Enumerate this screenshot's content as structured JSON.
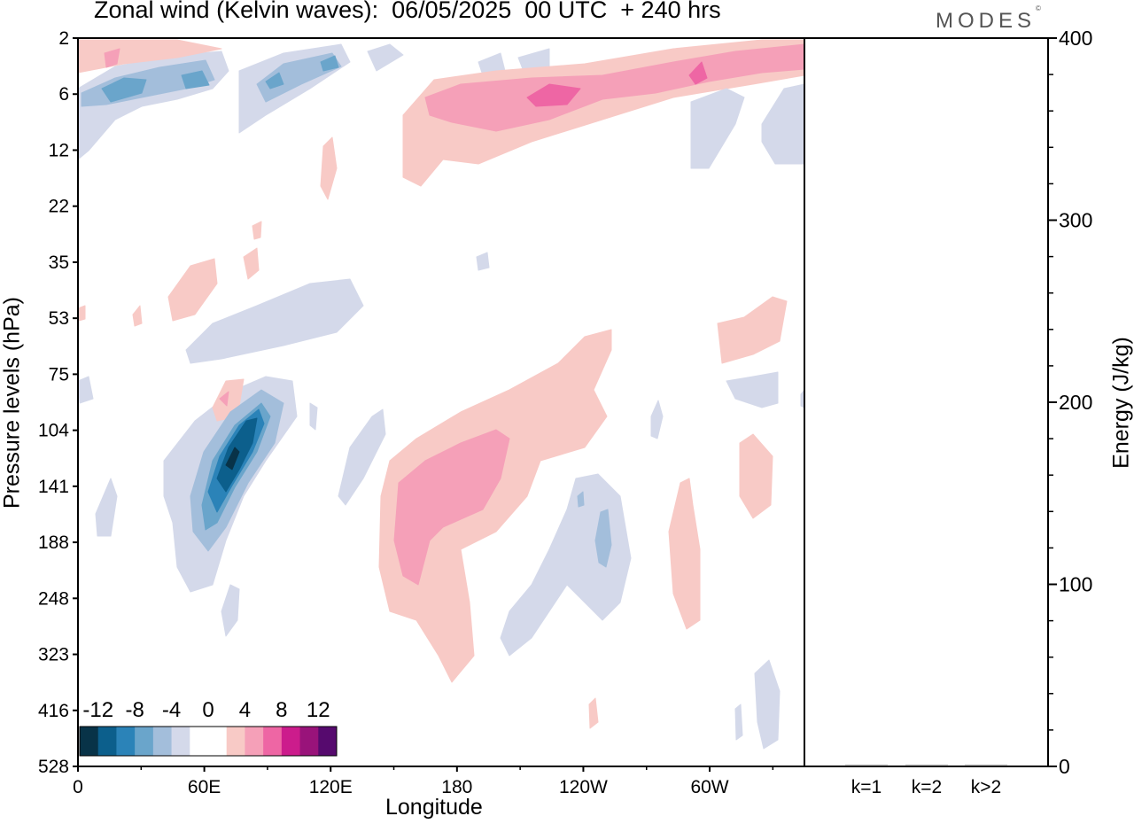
{
  "title": "Zonal wind (Kelvin waves):  06/05/2025  00 UTC  + 240 hrs",
  "brand": "MODES",
  "brand_mark": "©",
  "chart_data": [
    {
      "type": "heatmap",
      "xlabel": "Longitude",
      "ylabel": "Pressure levels (hPa)",
      "x_ticks": [
        "0",
        "60E",
        "120E",
        "180",
        "120W",
        "60W"
      ],
      "x_tick_values": [
        0,
        60,
        120,
        180,
        240,
        300
      ],
      "xlim": [
        0,
        345
      ],
      "y_ticks": [
        "2",
        "6",
        "12",
        "22",
        "35",
        "53",
        "75",
        "104",
        "141",
        "188",
        "248",
        "323",
        "416",
        "528"
      ],
      "y_scale": "pressure levels, top = 2 hPa",
      "colorbar": {
        "labels": [
          "-12",
          "-8",
          "-4",
          "0",
          "4",
          "8",
          "12"
        ],
        "levels": [
          -14,
          -12,
          -10,
          -8,
          -6,
          -4,
          -2,
          0,
          2,
          4,
          6,
          8,
          10,
          12,
          14
        ],
        "colors": [
          "#083348",
          "#0c5f8c",
          "#2b83b8",
          "#6aa5cb",
          "#a3bedb",
          "#d4d9ea",
          "#ffffff",
          "#ffffff",
          "#f8cac6",
          "#f5a0b8",
          "#ee66a4",
          "#cc1c8c",
          "#99137a",
          "#560a6e"
        ]
      },
      "features": [
        {
          "level_range": [
            "104",
            "248"
          ],
          "lon_range": [
            30,
            80
          ],
          "min_value": -14
        },
        {
          "level_range": [
            "104",
            "248"
          ],
          "lon_range": [
            140,
            200
          ],
          "max_value": 6
        },
        {
          "level_range": [
            "2",
            "12"
          ],
          "lon_range": [
            0,
            110
          ],
          "min_value": -6
        },
        {
          "level_range": [
            "2",
            "12"
          ],
          "lon_range": [
            155,
            345
          ],
          "max_value": 8
        }
      ]
    },
    {
      "type": "bar",
      "categories": [
        "k=1",
        "k=2",
        "k>2"
      ],
      "values": [
        0,
        0,
        0
      ],
      "ylabel": "Energy (J/kg)",
      "ylim": [
        0,
        400
      ],
      "y_ticks": [
        "0",
        "100",
        "200",
        "300",
        "400"
      ]
    }
  ]
}
